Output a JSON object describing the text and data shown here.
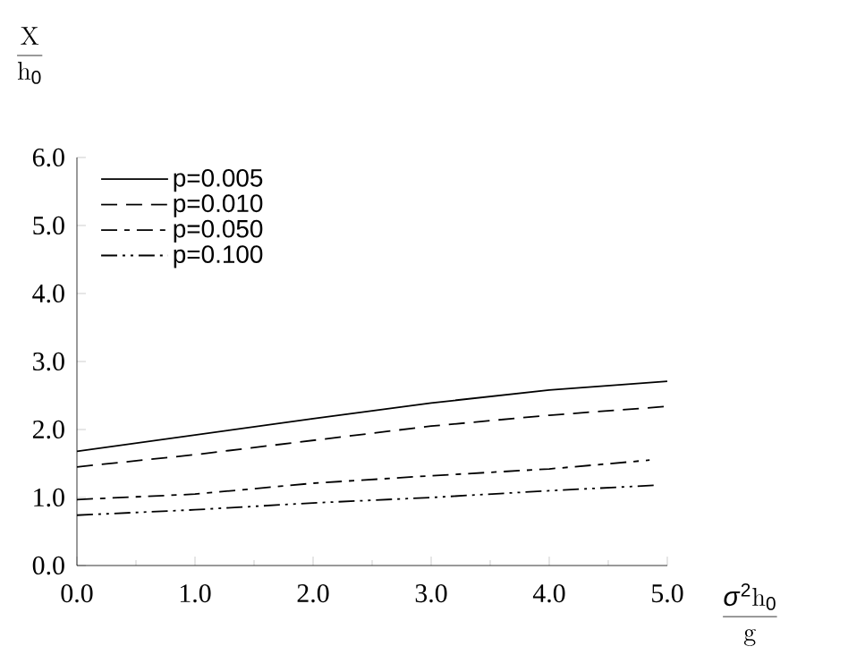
{
  "chart_data": {
    "type": "line",
    "xlabel": "\\frac{\\sigma^2\\mathrm{h}_0}{\\mathrm{g}}",
    "ylabel": "\\frac{\\mathrm{X}}{\\mathrm{h}_0}",
    "x": [
      0,
      1,
      2,
      3,
      4,
      5
    ],
    "series": [
      {
        "name": "p=0.005",
        "color": "#000000",
        "line_style": "solid",
        "values": [
          1.68,
          1.92,
          2.16,
          2.39,
          2.58,
          2.71
        ]
      },
      {
        "name": "p=0.010",
        "color": "#000000",
        "line_style": "dashed",
        "values": [
          1.45,
          1.63,
          1.84,
          2.05,
          2.21,
          2.34
        ]
      },
      {
        "name": "p=0.050",
        "color": "#000000",
        "line_style": "dashdot",
        "x": [
          0,
          1,
          2,
          3,
          4,
          4.85
        ],
        "values": [
          0.97,
          1.05,
          1.21,
          1.32,
          1.42,
          1.55
        ]
      },
      {
        "name": "p=0.100",
        "color": "#000000",
        "line_style": "dashdotdot",
        "x": [
          0,
          1,
          2,
          3,
          4,
          4.9
        ],
        "values": [
          0.74,
          0.82,
          0.92,
          1.0,
          1.1,
          1.18
        ]
      }
    ],
    "xlim": [
      0,
      5
    ],
    "ylim": [
      0,
      6
    ],
    "xticks": [
      {
        "value": 0,
        "label": "0.0"
      },
      {
        "value": 1,
        "label": "1.0"
      },
      {
        "value": 2,
        "label": "2.0"
      },
      {
        "value": 3,
        "label": "3.0"
      },
      {
        "value": 4,
        "label": "4.0"
      },
      {
        "value": 5,
        "label": "5.0"
      }
    ],
    "yticks": [
      {
        "value": 0,
        "label": "0.0"
      },
      {
        "value": 1,
        "label": "1.0"
      },
      {
        "value": 2,
        "label": "2.0"
      },
      {
        "value": 3,
        "label": "3.0"
      },
      {
        "value": 4,
        "label": "4.0"
      },
      {
        "value": 5,
        "label": "5.0"
      },
      {
        "value": 6,
        "label": "6.0"
      }
    ],
    "grid": false,
    "legend": "top left",
    "marker": "none"
  }
}
